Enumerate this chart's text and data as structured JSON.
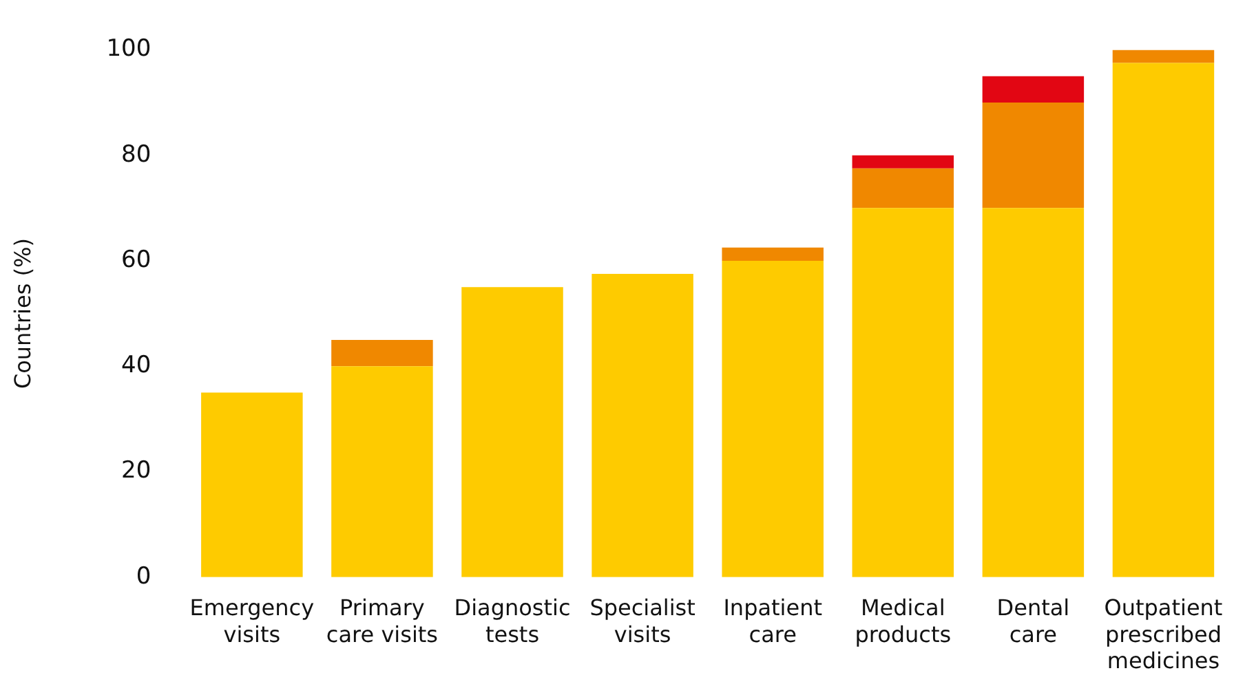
{
  "chart_data": {
    "type": "bar",
    "ylabel": "Countries (%)",
    "stacked": true,
    "categories": [
      "Emergency\nvisits",
      "Primary\ncare visits",
      "Diagnostic\ntests",
      "Specialist\nvisits",
      "Inpatient\ncare",
      "Medical\nproducts",
      "Dental\ncare",
      "Outpatient\nprescribed\nmedicines"
    ],
    "series": [
      {
        "color": "#fecb00",
        "values": [
          35,
          40,
          55,
          57.5,
          60,
          70,
          70,
          97.5
        ]
      },
      {
        "color": "#f08800",
        "values": [
          null,
          5,
          null,
          null,
          2.5,
          7.5,
          20,
          2.5
        ]
      },
      {
        "color": "#e20613",
        "values": [
          null,
          null,
          null,
          null,
          null,
          2.5,
          5,
          null
        ]
      }
    ],
    "ylim": [
      0,
      100
    ],
    "yticks": [
      0,
      20,
      40,
      60,
      80,
      100
    ],
    "grid": false,
    "legend": false
  }
}
